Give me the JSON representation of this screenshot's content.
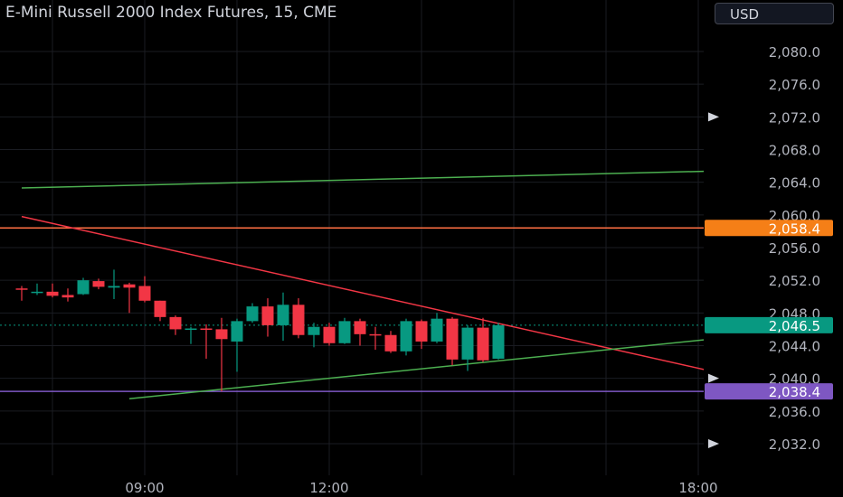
{
  "header": {
    "title": "E-Mini Russell 2000 Index Futures, 15, CME",
    "currency": "USD"
  },
  "chart_data": {
    "type": "candlestick",
    "ylim": [
      2030.0,
      2084.0
    ],
    "y_ticks": [
      "2,080.0",
      "2,076.0",
      "2,072.0",
      "2,068.0",
      "2,064.0",
      "2,060.0",
      "2,056.0",
      "2,052.0",
      "2,048.0",
      "2,044.0",
      "2,040.0",
      "2,036.0",
      "2,032.0"
    ],
    "y_tick_values": [
      2080,
      2076,
      2072,
      2068,
      2064,
      2060,
      2056,
      2052,
      2048,
      2044,
      2040,
      2036,
      2032
    ],
    "x_ticks": [
      "09:00",
      "12:00",
      "18:00"
    ],
    "x_tick_values": [
      9.0,
      12.0,
      18.0
    ],
    "xlim": [
      7.0,
      19.5
    ],
    "price_labels": [
      {
        "text": "2,058.4",
        "value": 2058.4,
        "color": "#f57f17"
      },
      {
        "text": "2,046.5",
        "value": 2046.5,
        "color": "#089981"
      },
      {
        "text": "2,038.4",
        "value": 2038.4,
        "color": "#7e57c2"
      }
    ],
    "marker_values": [
      2072.0,
      2040.0,
      2032.0
    ],
    "horizontal_lines": [
      {
        "value": 2058.4,
        "color": "#ff7043"
      },
      {
        "value": 2038.4,
        "color": "#7e57c2"
      }
    ],
    "trend_lines": [
      {
        "x1": 7.0,
        "y1": 2063.3,
        "x2": 19.5,
        "y2": 2065.6,
        "color": "#4caf50"
      },
      {
        "x1": 7.0,
        "y1": 2059.8,
        "x2": 19.5,
        "y2": 2038.7,
        "color": "#f23645"
      },
      {
        "x1": 8.75,
        "y1": 2037.5,
        "x2": 19.5,
        "y2": 2045.8,
        "color": "#4caf50"
      }
    ],
    "last_price": 2046.5,
    "candles": [
      {
        "t": 7.0,
        "o": 2051.0,
        "h": 2051.3,
        "c": 2050.9,
        "l": 2049.5
      },
      {
        "t": 7.25,
        "o": 2050.6,
        "h": 2051.6,
        "c": 2050.6,
        "l": 2050.2
      },
      {
        "t": 7.5,
        "o": 2050.6,
        "h": 2051.6,
        "c": 2050.1,
        "l": 2049.9
      },
      {
        "t": 7.75,
        "o": 2050.2,
        "h": 2051.0,
        "c": 2049.9,
        "l": 2049.4
      },
      {
        "t": 8.0,
        "o": 2050.3,
        "h": 2052.3,
        "c": 2052.0,
        "l": 2050.2
      },
      {
        "t": 8.25,
        "o": 2051.9,
        "h": 2052.2,
        "c": 2051.2,
        "l": 2050.9
      },
      {
        "t": 8.5,
        "o": 2051.1,
        "h": 2053.3,
        "c": 2051.3,
        "l": 2049.7
      },
      {
        "t": 8.75,
        "o": 2051.5,
        "h": 2051.7,
        "c": 2051.1,
        "l": 2048.0
      },
      {
        "t": 9.0,
        "o": 2051.3,
        "h": 2052.5,
        "c": 2049.5,
        "l": 2049.3
      },
      {
        "t": 9.25,
        "o": 2049.5,
        "h": 2049.5,
        "c": 2047.5,
        "l": 2047.0
      },
      {
        "t": 9.5,
        "o": 2047.5,
        "h": 2047.7,
        "c": 2046.0,
        "l": 2045.3
      },
      {
        "t": 9.75,
        "o": 2046.0,
        "h": 2046.3,
        "c": 2046.1,
        "l": 2044.2
      },
      {
        "t": 10.0,
        "o": 2046.1,
        "h": 2046.6,
        "c": 2046.0,
        "l": 2042.4
      },
      {
        "t": 10.25,
        "o": 2046.0,
        "h": 2047.4,
        "c": 2044.8,
        "l": 2038.4
      },
      {
        "t": 10.5,
        "o": 2044.5,
        "h": 2047.3,
        "c": 2047.0,
        "l": 2040.8
      },
      {
        "t": 10.75,
        "o": 2047.0,
        "h": 2049.2,
        "c": 2048.8,
        "l": 2046.8
      },
      {
        "t": 11.0,
        "o": 2048.8,
        "h": 2049.8,
        "c": 2046.5,
        "l": 2045.1
      },
      {
        "t": 11.25,
        "o": 2046.5,
        "h": 2050.5,
        "c": 2049.0,
        "l": 2044.6
      },
      {
        "t": 11.5,
        "o": 2049.0,
        "h": 2049.8,
        "c": 2045.3,
        "l": 2044.9
      },
      {
        "t": 11.75,
        "o": 2045.3,
        "h": 2046.8,
        "c": 2046.3,
        "l": 2043.8
      },
      {
        "t": 12.0,
        "o": 2046.3,
        "h": 2046.8,
        "c": 2044.3,
        "l": 2044.0
      },
      {
        "t": 12.25,
        "o": 2044.3,
        "h": 2047.4,
        "c": 2047.0,
        "l": 2044.2
      },
      {
        "t": 12.5,
        "o": 2047.0,
        "h": 2047.3,
        "c": 2045.4,
        "l": 2044.0
      },
      {
        "t": 12.75,
        "o": 2045.4,
        "h": 2046.3,
        "c": 2045.3,
        "l": 2043.5
      },
      {
        "t": 13.0,
        "o": 2045.3,
        "h": 2045.8,
        "c": 2043.3,
        "l": 2043.1
      },
      {
        "t": 13.25,
        "o": 2043.3,
        "h": 2047.3,
        "c": 2047.0,
        "l": 2042.8
      },
      {
        "t": 13.5,
        "o": 2047.0,
        "h": 2047.2,
        "c": 2044.5,
        "l": 2043.6
      },
      {
        "t": 13.75,
        "o": 2044.5,
        "h": 2048.0,
        "c": 2047.3,
        "l": 2044.3
      },
      {
        "t": 14.0,
        "o": 2047.3,
        "h": 2047.5,
        "c": 2042.3,
        "l": 2041.6
      },
      {
        "t": 14.25,
        "o": 2042.3,
        "h": 2046.5,
        "c": 2046.2,
        "l": 2040.9
      },
      {
        "t": 14.5,
        "o": 2046.2,
        "h": 2047.4,
        "c": 2042.2,
        "l": 2042.0
      },
      {
        "t": 14.75,
        "o": 2042.4,
        "h": 2046.8,
        "c": 2046.5,
        "l": 2042.3
      }
    ]
  }
}
